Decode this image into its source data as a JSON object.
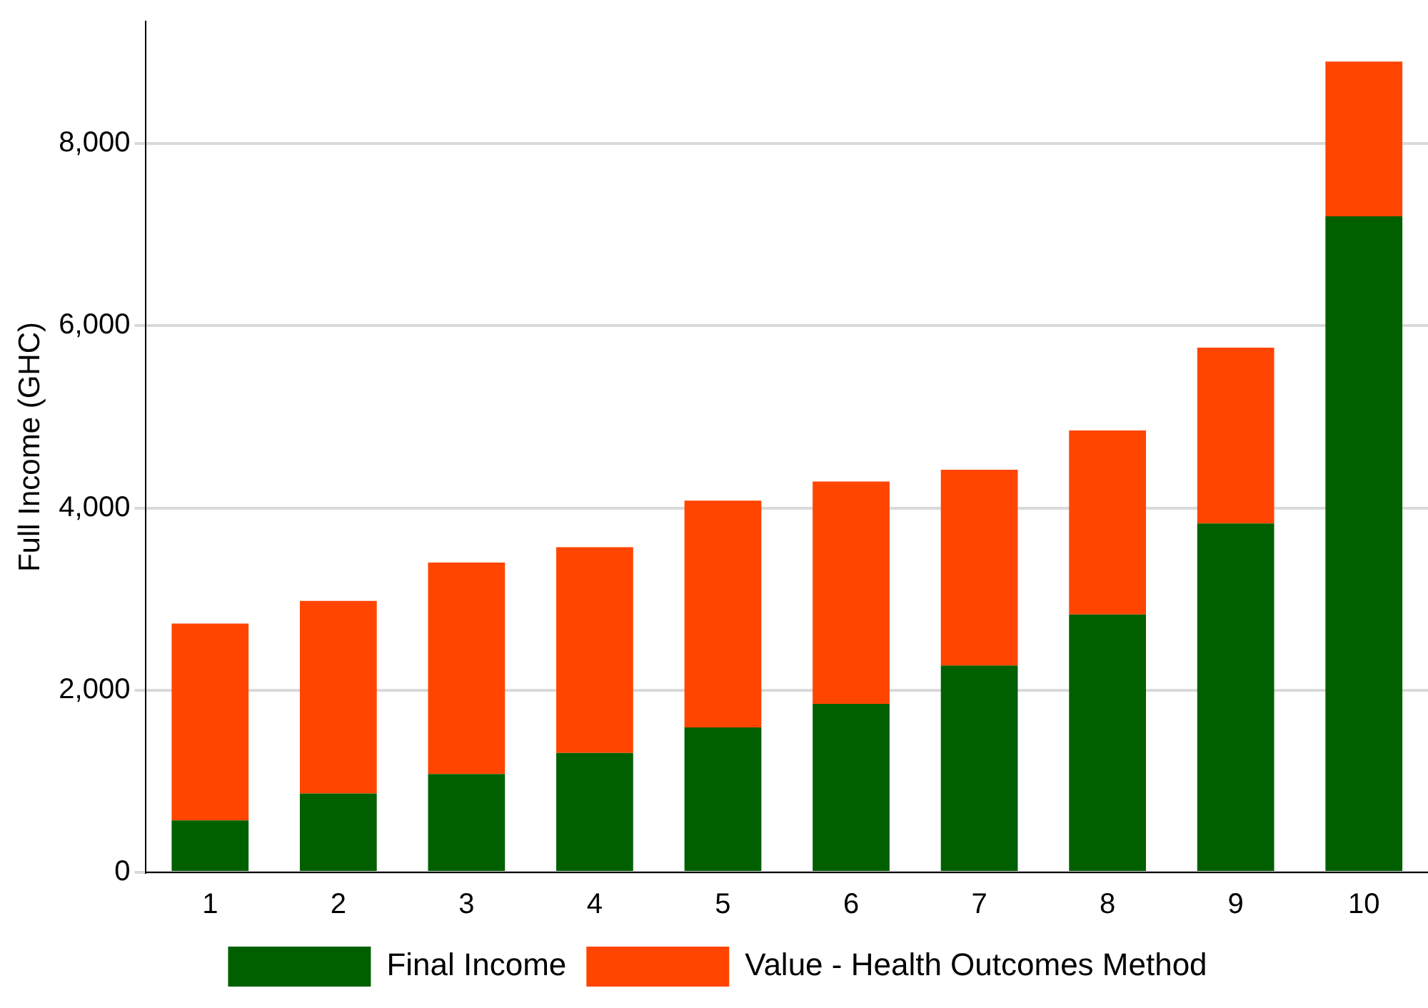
{
  "chart_data": {
    "type": "bar",
    "stacked": true,
    "ylabel": "Full Income (GHC)",
    "categories": [
      "1",
      "2",
      "3",
      "4",
      "5",
      "6",
      "7",
      "8",
      "9",
      "10"
    ],
    "series": [
      {
        "name": "Final Income",
        "color": "#006000",
        "values": [
          570,
          865,
          1080,
          1310,
          1590,
          1850,
          2270,
          2830,
          3830,
          7200
        ]
      },
      {
        "name": "Value - Health Outcomes Method",
        "color": "#ff4500",
        "values": [
          2160,
          2115,
          2320,
          2260,
          2490,
          2440,
          2150,
          2020,
          1930,
          1700
        ]
      }
    ],
    "ylim": [
      0,
      9340
    ],
    "yticks": [
      {
        "value": 0,
        "label": "0"
      },
      {
        "value": 2000,
        "label": "2,000"
      },
      {
        "value": 4000,
        "label": "4,000"
      },
      {
        "value": 6000,
        "label": "6,000"
      },
      {
        "value": 8000,
        "label": "8,000"
      }
    ],
    "grid": "y",
    "legend": "bottom"
  }
}
